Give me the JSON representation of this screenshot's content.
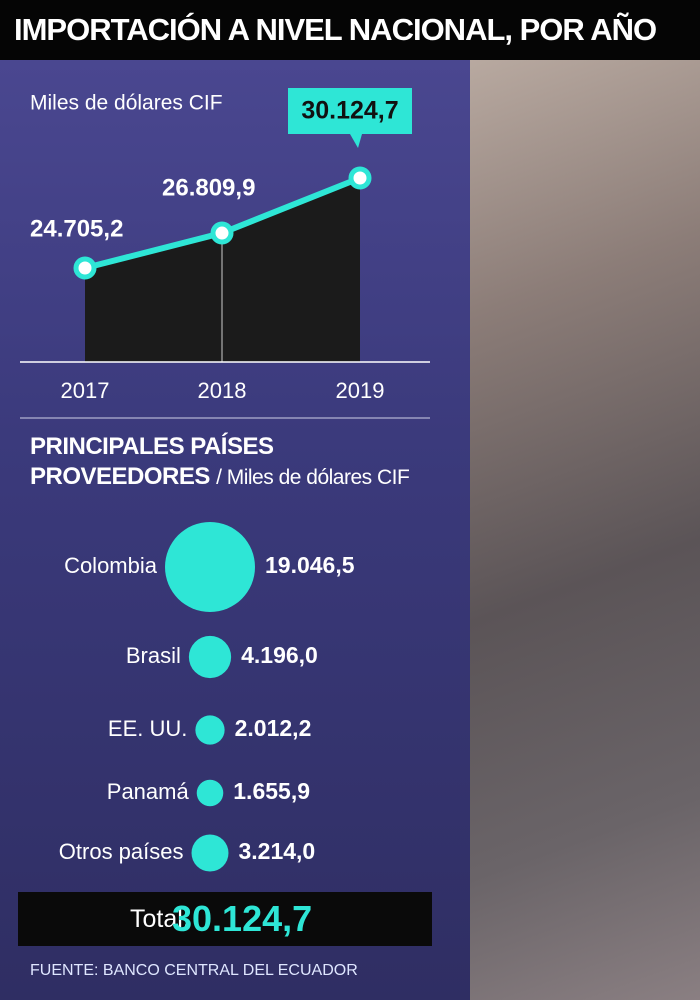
{
  "title": "IMPORTACIÓN A NIVEL NACIONAL, POR AÑO",
  "chart_data": [
    {
      "type": "area",
      "subtitle": "Miles de dólares CIF",
      "categories": [
        "2017",
        "2018",
        "2019"
      ],
      "values": [
        24705.2,
        26809.9,
        30124.7
      ],
      "value_labels": [
        "24.705,2",
        "26.809,9",
        "30.124,7"
      ],
      "color": "#2ee6d6"
    },
    {
      "type": "bubble",
      "title": "PRINCIPALES PAÍSES PROVEEDORES",
      "subtitle": "/ Miles de dólares CIF",
      "categories": [
        "Colombia",
        "Brasil",
        "EE. UU.",
        "Panamá",
        "Otros países"
      ],
      "values": [
        19046.5,
        4196.0,
        2012.2,
        1655.9,
        3214.0
      ],
      "value_labels": [
        "19.046,5",
        "4.196,0",
        "2.012,2",
        "1.655,9",
        "3.214,0"
      ],
      "color": "#2ee6d6"
    }
  ],
  "total": {
    "label": "Total:",
    "value": 30124.7,
    "value_label": "30.124,7"
  },
  "source": "FUENTE: BANCO CENTRAL DEL ECUADOR"
}
